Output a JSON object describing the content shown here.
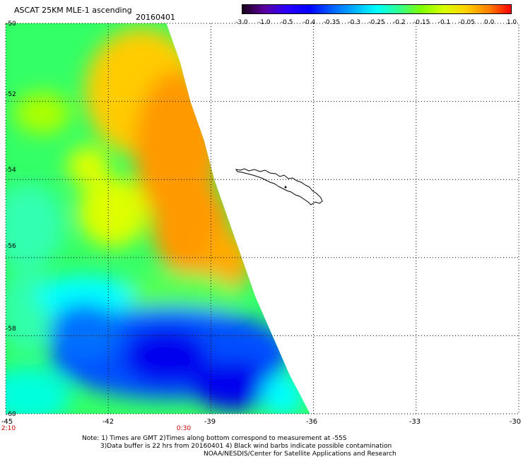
{
  "header": {
    "title": "ASCAT 25KM MLE-1 ascending",
    "date": "20160401"
  },
  "colorbar": {
    "labels": [
      "-3.0",
      "-1.0",
      "-0.5",
      "-0.4",
      "-0.35",
      "-0.3",
      "-0.25",
      "-0.2",
      "-0.15",
      "-0.1",
      "-0.05",
      "0.0",
      "1.0"
    ],
    "colors": [
      "#1a001a",
      "#5a00a0",
      "#2a00ff",
      "#0000ff",
      "#0060ff",
      "#00b0ff",
      "#00ffff",
      "#30ff90",
      "#80ff00",
      "#d8ff00",
      "#ffd000",
      "#ff8000",
      "#ff0000"
    ]
  },
  "axes": {
    "lat_labels": [
      "-50",
      "-52",
      "-54",
      "-56",
      "-58",
      "-60"
    ],
    "lon_labels": [
      "-45",
      "-42",
      "-39",
      "-36",
      "-33",
      "-30"
    ],
    "time_labels": [
      {
        "text": "2:10",
        "lon": -45
      },
      {
        "text": "0:30",
        "lon": -40
      }
    ]
  },
  "map": {
    "lon_range": [
      -45,
      -30
    ],
    "lat_range": [
      -60,
      -50
    ],
    "swath_edge": [
      {
        "lat": -50.0,
        "lon": -40.3
      },
      {
        "lat": -51.0,
        "lon": -39.9
      },
      {
        "lat": -52.0,
        "lon": -39.6
      },
      {
        "lat": -53.0,
        "lon": -39.2
      },
      {
        "lat": -54.0,
        "lon": -38.9
      },
      {
        "lat": -55.0,
        "lon": -38.5
      },
      {
        "lat": -56.0,
        "lon": -38.1
      },
      {
        "lat": -57.0,
        "lon": -37.7
      },
      {
        "lat": -58.0,
        "lon": -37.2
      },
      {
        "lat": -59.0,
        "lon": -36.7
      },
      {
        "lat": -60.0,
        "lon": -36.1
      }
    ]
  },
  "notes": [
    "Note: 1) Times are GMT 2)Times along bottom correspond to measurement at -55S",
    "3)Data buffer is 22 hrs from 20160401 4) Black wind barbs indicate possible contamination",
    "NOAA/NESDIS/Center for Satellite Applications and Research"
  ]
}
